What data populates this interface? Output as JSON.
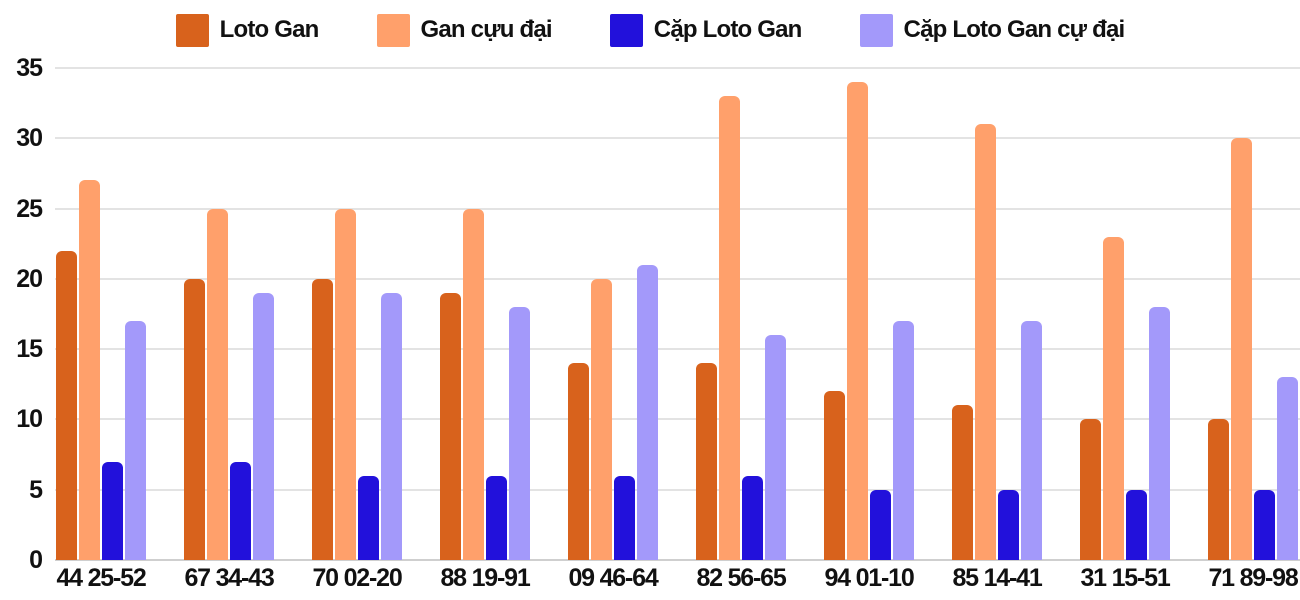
{
  "chart_data": {
    "type": "bar",
    "title": "",
    "xlabel": "",
    "ylabel": "",
    "categories": [
      "44 25-52",
      "67 34-43",
      "70 02-20",
      "88 19-91",
      "09 46-64",
      "82 56-65",
      "94 01-10",
      "85 14-41",
      "31 15-51",
      "71 89-98"
    ],
    "series": [
      {
        "name": "Loto Gan",
        "color": "#d8621c",
        "values": [
          22,
          20,
          20,
          19,
          14,
          14,
          12,
          11,
          10,
          10
        ]
      },
      {
        "name": "Gan cựu đại",
        "color": "#ffa06b",
        "values": [
          27,
          25,
          25,
          25,
          20,
          33,
          34,
          31,
          23,
          30
        ]
      },
      {
        "name": "Cặp Loto Gan",
        "color": "#2211db",
        "values": [
          7,
          7,
          6,
          6,
          6,
          6,
          5,
          5,
          5,
          5
        ]
      },
      {
        "name": "Cặp Loto Gan cự đại",
        "color": "#a399fa",
        "values": [
          17,
          19,
          19,
          18,
          21,
          16,
          17,
          17,
          18,
          13
        ]
      }
    ],
    "ylim": [
      0,
      35
    ],
    "yticks": [
      0,
      5,
      10,
      15,
      20,
      25,
      30,
      35
    ],
    "grid": true,
    "legend_position": "top"
  },
  "colors": {
    "background": "#ffffff",
    "gridline": "#e3e3e3",
    "axis_line": "#cfcfcf",
    "text": "#111111"
  }
}
